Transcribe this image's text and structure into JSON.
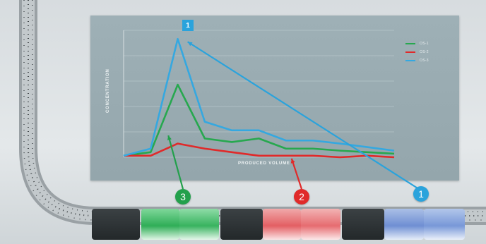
{
  "legend": {
    "items": [
      {
        "label": "OS-1",
        "color": "#27a84f"
      },
      {
        "label": "OS-2",
        "color": "#e02a2a"
      },
      {
        "label": "OS-3",
        "color": "#35a8e0"
      }
    ]
  },
  "peak_label": "1",
  "markers": {
    "one": "1",
    "two": "2",
    "three": "3"
  },
  "chart_data": {
    "type": "line",
    "xlabel": "PRODUCED VOLUME",
    "ylabel": "CONCENTRATION",
    "x": [
      0,
      1,
      2,
      3,
      4,
      5,
      6,
      7,
      8,
      9,
      10
    ],
    "series": [
      {
        "name": "OS-1",
        "color": "#27a84f",
        "values": [
          0.3,
          1.0,
          14.3,
          3.7,
          3.0,
          3.7,
          1.7,
          1.7,
          1.3,
          1.0,
          0.7
        ]
      },
      {
        "name": "OS-2",
        "color": "#e02a2a",
        "values": [
          0.3,
          0.3,
          2.7,
          1.7,
          1.0,
          0.3,
          0.3,
          0.3,
          0.0,
          0.3,
          0.0
        ]
      },
      {
        "name": "OS-3",
        "color": "#35a8e0",
        "values": [
          0.3,
          1.7,
          23.3,
          7.0,
          5.3,
          5.3,
          3.3,
          3.3,
          2.7,
          2.0,
          1.3
        ]
      }
    ],
    "ylim": [
      0,
      25
    ],
    "grid": true,
    "legend_position": "top-right"
  }
}
